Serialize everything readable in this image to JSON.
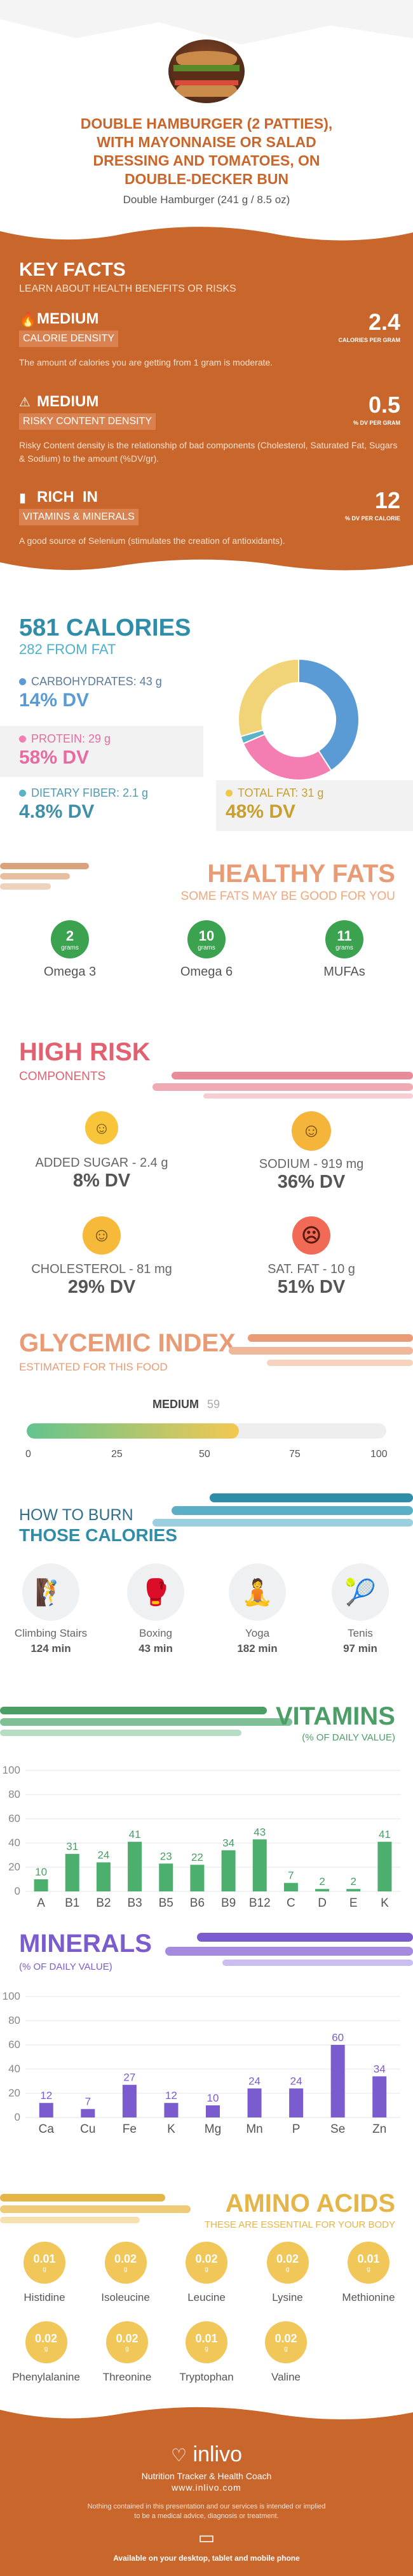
{
  "header": {
    "title_lines": [
      "DOUBLE HAMBURGER (2 PATTIES),",
      "WITH MAYONNAISE OR SALAD",
      "DRESSING AND TOMATOES, ON",
      "DOUBLE-DECKER BUN"
    ],
    "subtitle": "Double Hamburger (241 g / 8.5 oz)"
  },
  "key_facts": {
    "title": "KEY FACTS",
    "subtitle": "LEARN ABOUT HEALTH BENEFITS OR RISKS",
    "items": [
      {
        "level": "MEDIUM",
        "name": "CALORIE DENSITY",
        "desc": "The amount of calories you are getting from 1 gram is moderate.",
        "value": "2.4",
        "unit": "CALORIES PER GRAM"
      },
      {
        "level": "MEDIUM",
        "name": "RISKY CONTENT DENSITY",
        "desc": "Risky Content density is the relationship of bad components (Cholesterol, Saturated Fat, Sugars & Sodium) to the amount (%DV/gr).",
        "value": "0.5",
        "unit": "% DV PER GRAM"
      },
      {
        "level": "RICH  IN",
        "name": "VITAMINS & MINERALS",
        "desc": "A good source of Selenium (stimulates the creation of antioxidants).",
        "value": "12",
        "unit": "% DV PER CALORIE"
      }
    ]
  },
  "calories": {
    "title": "581 CALORIES",
    "from_fat": "282 FROM FAT",
    "items": [
      {
        "label": "CARBOHYDRATES: 43 g",
        "dv": "14% DV",
        "color": "#5b9bd5"
      },
      {
        "label": "PROTEIN: 29 g",
        "dv": "58% DV",
        "color": "#f47eb2"
      },
      {
        "label": "DIETARY FIBER: 2.1 g",
        "dv": "4.8% DV",
        "color": "#5bb3c7"
      },
      {
        "label": "TOTAL FAT: 31 g",
        "dv": "48% DV",
        "color": "#f2c84b"
      }
    ],
    "donut": [
      {
        "name": "carbs",
        "value": 43,
        "color": "#5b9bd5"
      },
      {
        "name": "protein",
        "value": 29,
        "color": "#f47eb2"
      },
      {
        "name": "fiber",
        "value": 2.1,
        "color": "#5bb3c7"
      },
      {
        "name": "fat",
        "value": 31,
        "color": "#f2d478"
      }
    ]
  },
  "healthy_fats": {
    "title": "HEALTHY FATS",
    "subtitle": "SOME FATS MAY BE GOOD FOR YOU",
    "unit": "grams",
    "items": [
      {
        "value": "2",
        "label": "Omega 3"
      },
      {
        "value": "10",
        "label": "Omega 6"
      },
      {
        "value": "11",
        "label": "MUFAs"
      }
    ]
  },
  "high_risk": {
    "title": "HIGH RISK",
    "subtitle": "COMPONENTS",
    "items": [
      {
        "label": "ADDED SUGAR - 2.4 g",
        "dv": "8% DV",
        "mood": "happy"
      },
      {
        "label": "SODIUM - 919 mg",
        "dv": "36% DV",
        "mood": "happy"
      },
      {
        "label": "CHOLESTEROL - 81 mg",
        "dv": "29% DV",
        "mood": "happy"
      },
      {
        "label": "SAT. FAT - 10 g",
        "dv": "51% DV",
        "mood": "sad"
      }
    ]
  },
  "glycemic": {
    "title": "GLYCEMIC INDEX",
    "subtitle": "ESTIMATED FOR THIS FOOD",
    "level": "MEDIUM",
    "value": 59,
    "value_label": "59",
    "ticks": [
      "0",
      "25",
      "50",
      "75",
      "100"
    ]
  },
  "burn": {
    "title1": "HOW TO BURN",
    "title2": "THOSE CALORIES",
    "items": [
      {
        "label": "Climbing Stairs",
        "time": "124 min"
      },
      {
        "label": "Boxing",
        "time": "43 min"
      },
      {
        "label": "Yoga",
        "time": "182 min"
      },
      {
        "label": "Tenis",
        "time": "97 min"
      }
    ]
  },
  "vitamins": {
    "title": "VITAMINS",
    "subtitle": "(% OF DAILY VALUE)",
    "chart_data": {
      "type": "bar",
      "categories": [
        "A",
        "B1",
        "B2",
        "B3",
        "B5",
        "B6",
        "B9",
        "B12",
        "C",
        "D",
        "E",
        "K"
      ],
      "values": [
        10,
        31,
        24,
        41,
        23,
        22,
        34,
        43,
        7,
        2,
        2,
        41
      ],
      "ylim": [
        0,
        100
      ],
      "yticks": [
        "0",
        "20",
        "40",
        "60",
        "80",
        "100"
      ],
      "color": "#4caf6e"
    }
  },
  "minerals": {
    "title": "MINERALS",
    "subtitle": "(% OF DAILY VALUE)",
    "chart_data": {
      "type": "bar",
      "categories": [
        "Ca",
        "Cu",
        "Fe",
        "K",
        "Mg",
        "Mn",
        "P",
        "Se",
        "Zn"
      ],
      "values": [
        12,
        7,
        27,
        12,
        10,
        24,
        24,
        60,
        34
      ],
      "ylim": [
        0,
        100
      ],
      "yticks": [
        "0",
        "20",
        "40",
        "60",
        "80",
        "100"
      ],
      "color": "#7b5ccf"
    }
  },
  "amino": {
    "title": "AMINO ACIDS",
    "subtitle": "THESE ARE ESSENTIAL FOR YOUR BODY",
    "unit": "g",
    "row1": [
      {
        "value": "0.01",
        "label": "Histidine"
      },
      {
        "value": "0.02",
        "label": "Isoleucine"
      },
      {
        "value": "0.02",
        "label": "Leucine"
      },
      {
        "value": "0.02",
        "label": "Lysine"
      },
      {
        "value": "0.01",
        "label": "Methionine"
      }
    ],
    "row2": [
      {
        "value": "0.02",
        "label": "Phenylalanine"
      },
      {
        "value": "0.02",
        "label": "Threonine"
      },
      {
        "value": "0.01",
        "label": "Tryptophan"
      },
      {
        "value": "0.02",
        "label": "Valine"
      }
    ]
  },
  "footer": {
    "brand": "inlivo",
    "tagline": "Nutrition Tracker & Health Coach",
    "url": "www.inlivo.com",
    "disclaimer1": "Nothing contained in this presentation and our services is intended or implied",
    "disclaimer2": "to be a medical advice, diagnosis or treatment.",
    "available": "Available on your desktop, tablet and mobile phone"
  }
}
